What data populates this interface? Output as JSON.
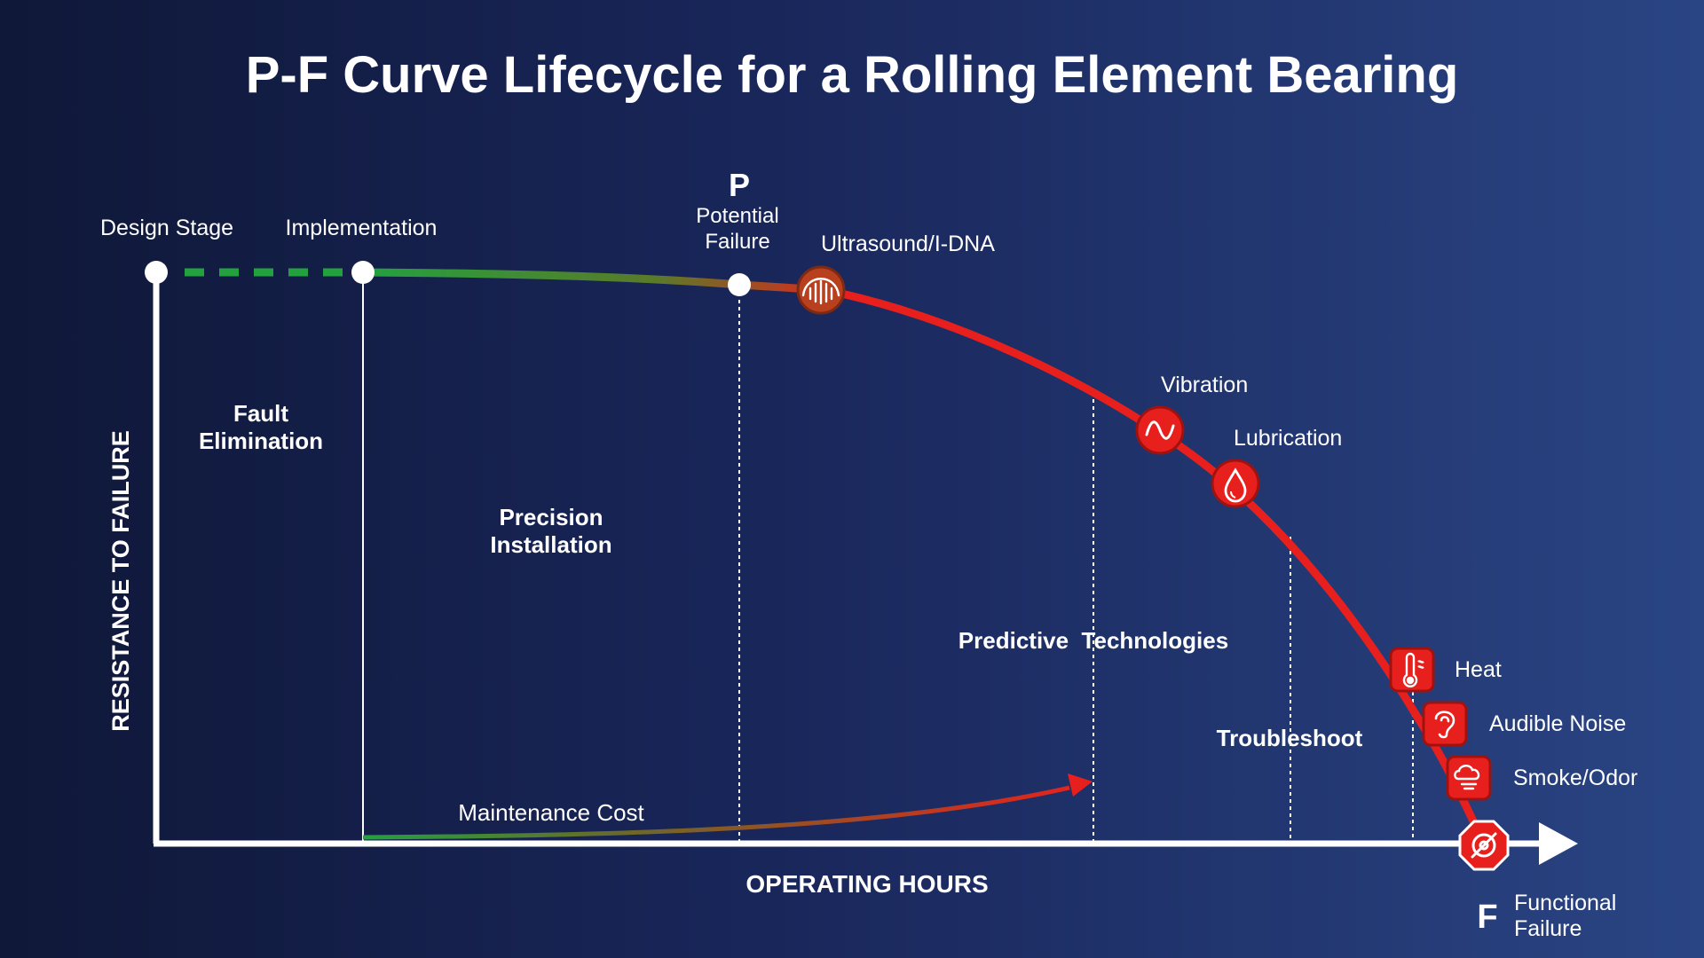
{
  "title": "P-F Curve Lifecycle for a Rolling Element Bearing",
  "axes": {
    "y_label": "RESISTANCE TO FAILURE",
    "x_label": "OPERATING HOURS"
  },
  "milestones": {
    "design": "Design Stage",
    "implementation": "Implementation",
    "p_letter": "P",
    "potential_line1": "Potential",
    "potential_line2": "Failure",
    "f_letter": "F",
    "functional_line1": "Functional",
    "functional_line2": "Failure"
  },
  "regions": {
    "fault_line1": "Fault",
    "fault_line2": "Elimination",
    "precision_line1": "Precision",
    "precision_line2": "Installation",
    "predictive": "Predictive  Technologies",
    "troubleshoot": "Troubleshoot"
  },
  "cost_curve_label": "Maintenance Cost",
  "indicators": [
    {
      "label": "Ultrasound/I-DNA",
      "icon": "ultrasound-icon"
    },
    {
      "label": "Vibration",
      "icon": "vibration-wave-icon"
    },
    {
      "label": "Lubrication",
      "icon": "oil-drop-icon"
    },
    {
      "label": "Heat",
      "icon": "thermometer-icon"
    },
    {
      "label": "Audible Noise",
      "icon": "ear-icon"
    },
    {
      "label": "Smoke/Odor",
      "icon": "smoke-cloud-icon"
    }
  ],
  "colors": {
    "healthy": "#23a13f",
    "degrading": "#e8201d",
    "ultrasound": "#b8401f",
    "axis": "#ffffff"
  }
}
